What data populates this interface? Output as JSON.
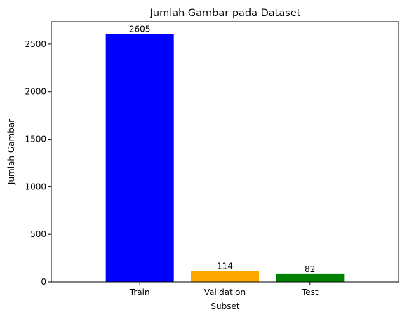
{
  "chart_data": {
    "type": "bar",
    "title": "Jumlah Gambar pada Dataset",
    "xlabel": "Subset",
    "ylabel": "Jumlah Gambar",
    "categories": [
      "Train",
      "Validation",
      "Test"
    ],
    "values": [
      2605,
      114,
      82
    ],
    "data_labels": [
      "2605",
      "114",
      "82"
    ],
    "colors": [
      "#0000ff",
      "#ffa500",
      "#008000"
    ],
    "ylim": [
      0,
      2735.25
    ],
    "yticks": [
      0,
      500,
      1000,
      1500,
      2000,
      2500
    ],
    "ytick_labels": [
      "0",
      "500",
      "1000",
      "1500",
      "2000",
      "2500"
    ],
    "grid": false,
    "legend": "none"
  }
}
